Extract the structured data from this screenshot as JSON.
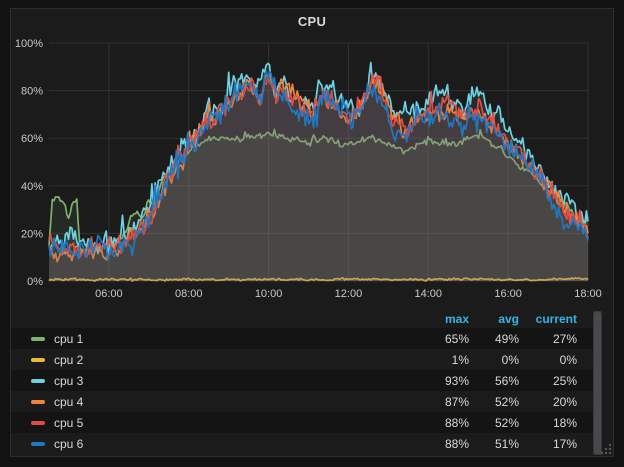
{
  "panel": {
    "title": "CPU"
  },
  "colors": {
    "page_background": "#121213",
    "panel_background": "#1b1b1c",
    "panel_border": "#2d2d30",
    "grid": "#313135",
    "axis_text": "#c8c9ca",
    "title_text": "#d8d9da",
    "legend_header": "#33b5e5",
    "legend_text": "#d8d9da",
    "fill_composite": "#4d4849"
  },
  "chart_data": {
    "type": "line",
    "title": "CPU",
    "xlabel": "",
    "ylabel": "",
    "grid": true,
    "legend": {
      "position": "bottom-table",
      "columns": [
        "max",
        "avg",
        "current"
      ]
    },
    "x_axis": {
      "range_hours": [
        4.5,
        18
      ],
      "ticks": [
        {
          "t": 6,
          "label": "06:00"
        },
        {
          "t": 8,
          "label": "08:00"
        },
        {
          "t": 10,
          "label": "10:00"
        },
        {
          "t": 12,
          "label": "12:00"
        },
        {
          "t": 14,
          "label": "14:00"
        },
        {
          "t": 16,
          "label": "16:00"
        },
        {
          "t": 18,
          "label": "18:00"
        }
      ]
    },
    "y_axis": {
      "range": [
        0,
        100
      ],
      "ticks": [
        {
          "v": 0,
          "label": "0%"
        },
        {
          "v": 20,
          "label": "20%"
        },
        {
          "v": 40,
          "label": "40%"
        },
        {
          "v": 60,
          "label": "60%"
        },
        {
          "v": 80,
          "label": "80%"
        },
        {
          "v": 100,
          "label": "100%"
        }
      ]
    },
    "series": [
      {
        "name": "cpu 1",
        "color": "#7EB26D",
        "stats": {
          "max": "65%",
          "avg": "49%",
          "current": "27%"
        },
        "noise": 1.6,
        "clip": 65,
        "trend": [
          [
            4.5,
            14
          ],
          [
            4.58,
            34
          ],
          [
            4.75,
            35
          ],
          [
            4.9,
            33
          ],
          [
            5.0,
            26
          ],
          [
            5.08,
            33
          ],
          [
            5.2,
            34
          ],
          [
            5.27,
            14
          ],
          [
            5.5,
            13
          ],
          [
            5.8,
            14
          ],
          [
            6.1,
            15
          ],
          [
            6.35,
            18
          ],
          [
            6.55,
            25
          ],
          [
            6.7,
            29
          ],
          [
            6.85,
            26
          ],
          [
            7.0,
            34
          ],
          [
            7.15,
            30
          ],
          [
            7.3,
            42
          ],
          [
            7.5,
            45
          ],
          [
            7.7,
            50
          ],
          [
            8.0,
            55
          ],
          [
            8.3,
            58
          ],
          [
            8.6,
            60
          ],
          [
            9.0,
            60
          ],
          [
            9.4,
            61
          ],
          [
            9.8,
            62
          ],
          [
            10.2,
            61
          ],
          [
            10.6,
            60
          ],
          [
            11.0,
            58
          ],
          [
            11.4,
            60
          ],
          [
            11.8,
            58
          ],
          [
            12.2,
            57
          ],
          [
            12.6,
            60
          ],
          [
            13.0,
            58
          ],
          [
            13.4,
            55
          ],
          [
            13.8,
            58
          ],
          [
            14.2,
            59
          ],
          [
            14.6,
            57
          ],
          [
            15.0,
            60
          ],
          [
            15.35,
            62
          ],
          [
            15.7,
            57
          ],
          [
            16.0,
            52
          ],
          [
            16.3,
            48
          ],
          [
            16.6,
            44
          ],
          [
            16.9,
            40
          ],
          [
            17.2,
            35
          ],
          [
            17.5,
            31
          ],
          [
            17.75,
            26
          ],
          [
            17.9,
            23
          ],
          [
            18.0,
            27
          ]
        ]
      },
      {
        "name": "cpu 2",
        "color": "#EAB839",
        "stats": {
          "max": "1%",
          "avg": "0%",
          "current": "0%"
        },
        "noise": 0.5,
        "clip": 1.3,
        "trend": [
          [
            4.5,
            0.6
          ],
          [
            18,
            0.6
          ]
        ]
      },
      {
        "name": "cpu 3",
        "color": "#6ED0E0",
        "stats": {
          "max": "93%",
          "avg": "56%",
          "current": "25%"
        },
        "noise": 5,
        "clip": 93,
        "trend": [
          [
            4.5,
            16
          ],
          [
            4.8,
            15
          ],
          [
            5.05,
            19
          ],
          [
            5.3,
            15
          ],
          [
            5.6,
            14
          ],
          [
            5.9,
            15
          ],
          [
            6.2,
            16
          ],
          [
            6.5,
            19
          ],
          [
            6.8,
            24
          ],
          [
            7.1,
            33
          ],
          [
            7.4,
            46
          ],
          [
            7.7,
            54
          ],
          [
            8.0,
            62
          ],
          [
            8.3,
            68
          ],
          [
            8.6,
            72
          ],
          [
            8.9,
            78
          ],
          [
            9.2,
            83
          ],
          [
            9.45,
            86
          ],
          [
            9.7,
            80
          ],
          [
            9.9,
            88
          ],
          [
            10.0,
            93
          ],
          [
            10.15,
            82
          ],
          [
            10.4,
            84
          ],
          [
            10.7,
            77
          ],
          [
            11.0,
            72
          ],
          [
            11.3,
            83
          ],
          [
            11.6,
            79
          ],
          [
            11.9,
            72
          ],
          [
            12.2,
            76
          ],
          [
            12.45,
            82
          ],
          [
            12.65,
            90
          ],
          [
            12.85,
            83
          ],
          [
            13.1,
            72
          ],
          [
            13.4,
            68
          ],
          [
            13.7,
            72
          ],
          [
            14.0,
            76
          ],
          [
            14.3,
            81
          ],
          [
            14.6,
            77
          ],
          [
            14.9,
            73
          ],
          [
            15.2,
            79
          ],
          [
            15.5,
            73
          ],
          [
            15.8,
            66
          ],
          [
            16.1,
            60
          ],
          [
            16.4,
            54
          ],
          [
            16.7,
            48
          ],
          [
            17.0,
            42
          ],
          [
            17.3,
            37
          ],
          [
            17.6,
            32
          ],
          [
            17.85,
            27
          ],
          [
            18.0,
            25
          ]
        ]
      },
      {
        "name": "cpu 4",
        "color": "#EF843C",
        "stats": {
          "max": "87%",
          "avg": "52%",
          "current": "20%"
        },
        "noise": 4.5,
        "clip": 87,
        "trend": [
          [
            4.5,
            14
          ],
          [
            4.9,
            13
          ],
          [
            5.3,
            13
          ],
          [
            5.7,
            13
          ],
          [
            6.1,
            14
          ],
          [
            6.5,
            17
          ],
          [
            6.9,
            23
          ],
          [
            7.2,
            32
          ],
          [
            7.5,
            44
          ],
          [
            7.8,
            52
          ],
          [
            8.1,
            60
          ],
          [
            8.4,
            65
          ],
          [
            8.7,
            69
          ],
          [
            9.0,
            74
          ],
          [
            9.3,
            79
          ],
          [
            9.55,
            83
          ],
          [
            9.8,
            76
          ],
          [
            10.0,
            87
          ],
          [
            10.2,
            78
          ],
          [
            10.5,
            79
          ],
          [
            10.8,
            73
          ],
          [
            11.1,
            69
          ],
          [
            11.4,
            78
          ],
          [
            11.7,
            74
          ],
          [
            12.0,
            68
          ],
          [
            12.3,
            73
          ],
          [
            12.6,
            84
          ],
          [
            12.85,
            79
          ],
          [
            13.1,
            68
          ],
          [
            13.45,
            64
          ],
          [
            13.8,
            68
          ],
          [
            14.15,
            73
          ],
          [
            14.5,
            74
          ],
          [
            14.85,
            70
          ],
          [
            15.2,
            72
          ],
          [
            15.5,
            69
          ],
          [
            15.8,
            62
          ],
          [
            16.1,
            56
          ],
          [
            16.4,
            50
          ],
          [
            16.7,
            44
          ],
          [
            17.0,
            38
          ],
          [
            17.3,
            33
          ],
          [
            17.6,
            28
          ],
          [
            17.85,
            23
          ],
          [
            18.0,
            20
          ]
        ]
      },
      {
        "name": "cpu 5",
        "color": "#E24D42",
        "stats": {
          "max": "88%",
          "avg": "52%",
          "current": "18%"
        },
        "noise": 4.5,
        "clip": 88,
        "trend": [
          [
            4.5,
            15
          ],
          [
            4.9,
            14
          ],
          [
            5.3,
            13
          ],
          [
            5.7,
            14
          ],
          [
            6.1,
            14
          ],
          [
            6.5,
            18
          ],
          [
            6.9,
            24
          ],
          [
            7.2,
            33
          ],
          [
            7.5,
            45
          ],
          [
            7.8,
            53
          ],
          [
            8.1,
            61
          ],
          [
            8.4,
            66
          ],
          [
            8.7,
            70
          ],
          [
            9.0,
            75
          ],
          [
            9.3,
            80
          ],
          [
            9.55,
            84
          ],
          [
            9.8,
            77
          ],
          [
            10.0,
            88
          ],
          [
            10.2,
            79
          ],
          [
            10.5,
            80
          ],
          [
            10.8,
            74
          ],
          [
            11.1,
            70
          ],
          [
            11.4,
            79
          ],
          [
            11.7,
            74
          ],
          [
            12.0,
            69
          ],
          [
            12.3,
            74
          ],
          [
            12.6,
            86
          ],
          [
            12.85,
            80
          ],
          [
            13.1,
            69
          ],
          [
            13.45,
            65
          ],
          [
            13.8,
            69
          ],
          [
            14.15,
            74
          ],
          [
            14.5,
            75
          ],
          [
            14.85,
            71
          ],
          [
            15.2,
            73
          ],
          [
            15.5,
            70
          ],
          [
            15.8,
            63
          ],
          [
            16.1,
            57
          ],
          [
            16.4,
            50
          ],
          [
            16.7,
            44
          ],
          [
            17.0,
            38
          ],
          [
            17.3,
            33
          ],
          [
            17.6,
            27
          ],
          [
            17.85,
            22
          ],
          [
            18.0,
            18
          ]
        ]
      },
      {
        "name": "cpu 6",
        "color": "#1F78C1",
        "stats": {
          "max": "88%",
          "avg": "51%",
          "current": "17%"
        },
        "noise": 5.5,
        "clip": 88,
        "trend": [
          [
            4.5,
            14
          ],
          [
            4.9,
            13
          ],
          [
            5.3,
            12
          ],
          [
            5.7,
            13
          ],
          [
            6.1,
            13
          ],
          [
            6.5,
            16
          ],
          [
            6.9,
            22
          ],
          [
            7.2,
            31
          ],
          [
            7.5,
            43
          ],
          [
            7.8,
            51
          ],
          [
            8.1,
            58
          ],
          [
            8.4,
            63
          ],
          [
            8.7,
            67
          ],
          [
            9.0,
            72
          ],
          [
            9.3,
            77
          ],
          [
            9.55,
            81
          ],
          [
            9.8,
            74
          ],
          [
            10.0,
            88
          ],
          [
            10.2,
            76
          ],
          [
            10.5,
            77
          ],
          [
            10.8,
            71
          ],
          [
            11.1,
            67
          ],
          [
            11.4,
            76
          ],
          [
            11.7,
            71
          ],
          [
            12.0,
            66
          ],
          [
            12.3,
            71
          ],
          [
            12.6,
            83
          ],
          [
            12.85,
            77
          ],
          [
            13.1,
            66
          ],
          [
            13.45,
            62
          ],
          [
            13.8,
            66
          ],
          [
            14.15,
            71
          ],
          [
            14.5,
            72
          ],
          [
            14.85,
            68
          ],
          [
            15.2,
            70
          ],
          [
            15.5,
            67
          ],
          [
            15.8,
            60
          ],
          [
            16.1,
            54
          ],
          [
            16.4,
            48
          ],
          [
            16.7,
            42
          ],
          [
            17.0,
            36
          ],
          [
            17.3,
            31
          ],
          [
            17.6,
            26
          ],
          [
            17.85,
            21
          ],
          [
            18.0,
            17
          ]
        ]
      }
    ]
  }
}
